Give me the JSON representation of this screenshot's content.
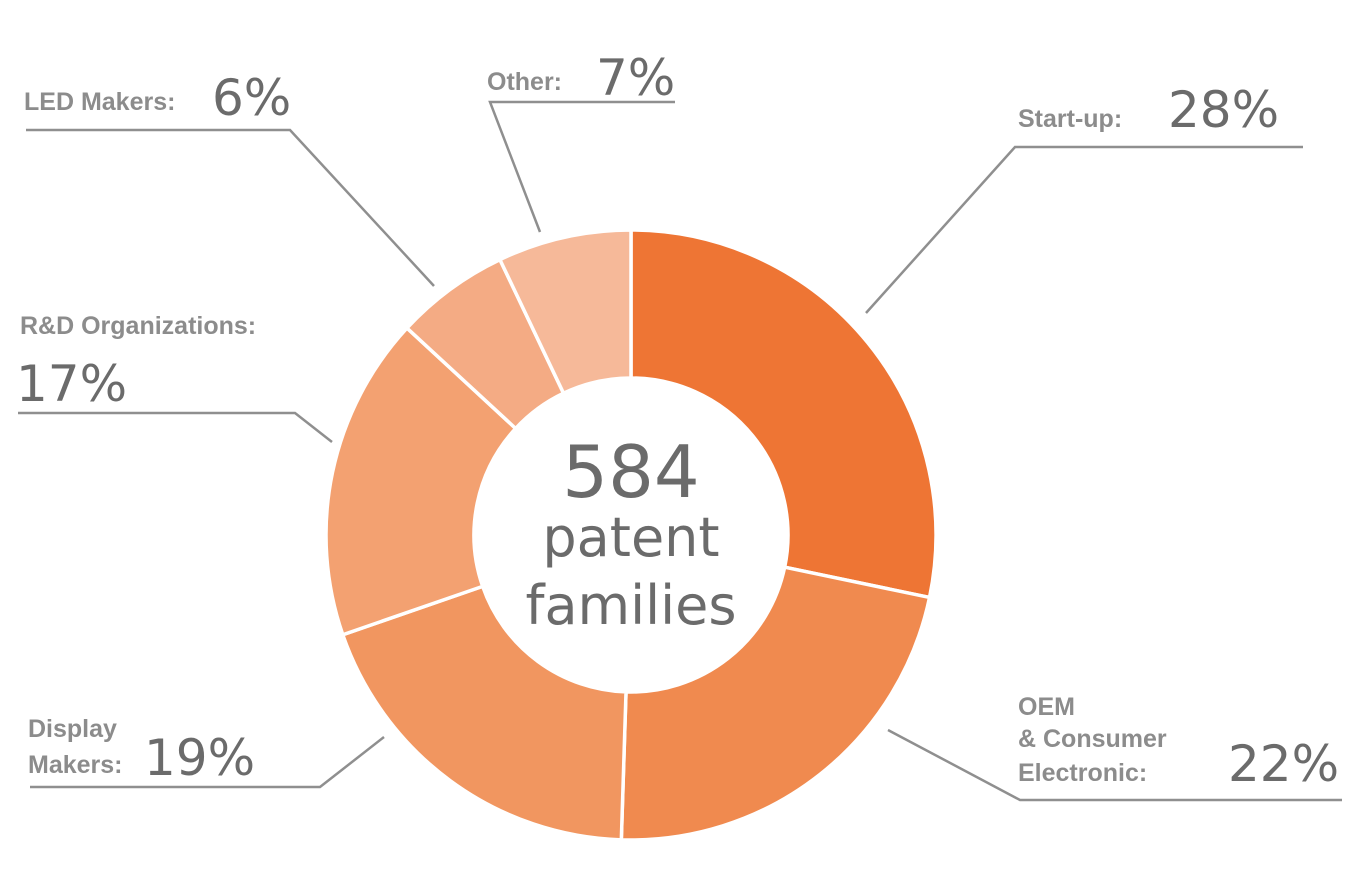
{
  "chart_data": {
    "type": "pie",
    "title": "",
    "center_number": "584",
    "center_text_line1": "patent",
    "center_text_line2": "families",
    "series": [
      {
        "label": "Start-up:",
        "label_lines": [
          "Start-up:"
        ],
        "percent_text": "28%",
        "value": 28,
        "color": "#ee7534"
      },
      {
        "label": "OEM & Consumer Electronic:",
        "label_lines": [
          "OEM",
          "& Consumer",
          "Electronic:"
        ],
        "percent_text": "22%",
        "value": 22,
        "color": "#f08a4f"
      },
      {
        "label": "Display Makers:",
        "label_lines": [
          "Display",
          "Makers:"
        ],
        "percent_text": "19%",
        "value": 19,
        "color": "#f19660"
      },
      {
        "label": "R&D Organizations:",
        "label_lines": [
          "R&D Organizations:"
        ],
        "percent_text": "17%",
        "value": 17,
        "color": "#f3a171"
      },
      {
        "label": "LED Makers:",
        "label_lines": [
          "LED Makers:"
        ],
        "percent_text": "6%",
        "value": 6,
        "color": "#f4ab84"
      },
      {
        "label": "Other:",
        "label_lines": [
          "Other:"
        ],
        "percent_text": "7%",
        "value": 7,
        "color": "#f6b999"
      }
    ]
  }
}
